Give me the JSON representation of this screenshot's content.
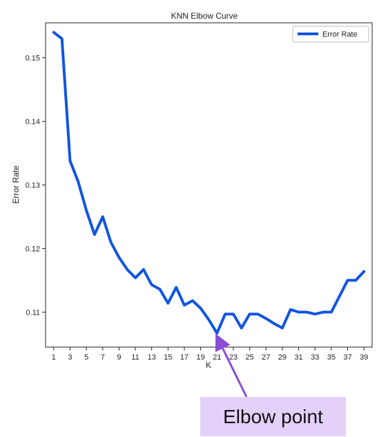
{
  "chart_data": {
    "type": "line",
    "title": "KNN Elbow Curve",
    "xlabel": "K",
    "ylabel": "Error Rate",
    "x": [
      1,
      2,
      3,
      4,
      5,
      6,
      7,
      8,
      9,
      10,
      11,
      12,
      13,
      14,
      15,
      16,
      17,
      18,
      19,
      20,
      21,
      22,
      23,
      24,
      25,
      26,
      27,
      28,
      29,
      30,
      31,
      32,
      33,
      34,
      35,
      36,
      37,
      38,
      39
    ],
    "series": [
      {
        "name": "Error Rate",
        "color": "#1155e0",
        "values": [
          0.154,
          0.153,
          0.1338,
          0.1305,
          0.126,
          0.1222,
          0.125,
          0.121,
          0.1186,
          0.1167,
          0.1154,
          0.1167,
          0.1143,
          0.1136,
          0.1114,
          0.1139,
          0.1111,
          0.1118,
          0.1106,
          0.1088,
          0.1067,
          0.1097,
          0.1097,
          0.1075,
          0.1097,
          0.1097,
          0.109,
          0.1082,
          0.1075,
          0.1104,
          0.11,
          0.11,
          0.1097,
          0.11,
          0.11,
          0.1125,
          0.115,
          0.115,
          0.1164
        ]
      }
    ],
    "xlim": [
      0,
      40
    ],
    "ylim": [
      0.1045,
      0.1555
    ],
    "xticks": [
      1,
      3,
      5,
      7,
      9,
      11,
      13,
      15,
      17,
      19,
      21,
      23,
      25,
      27,
      29,
      31,
      33,
      35,
      37,
      39
    ],
    "yticks": [
      0.11,
      0.12,
      0.13,
      0.14,
      0.15
    ],
    "ytick_labels": [
      "0.11",
      "0.12",
      "0.13",
      "0.14",
      "0.15"
    ],
    "legend": {
      "position": "top-right",
      "entries": [
        "Error Rate"
      ]
    },
    "grid": false,
    "annotation": {
      "text": "Elbow point",
      "target_x": 21,
      "target_y": 0.1067,
      "arrow_color": "#8a4bd6",
      "box_color": "#e3d1fa"
    }
  }
}
